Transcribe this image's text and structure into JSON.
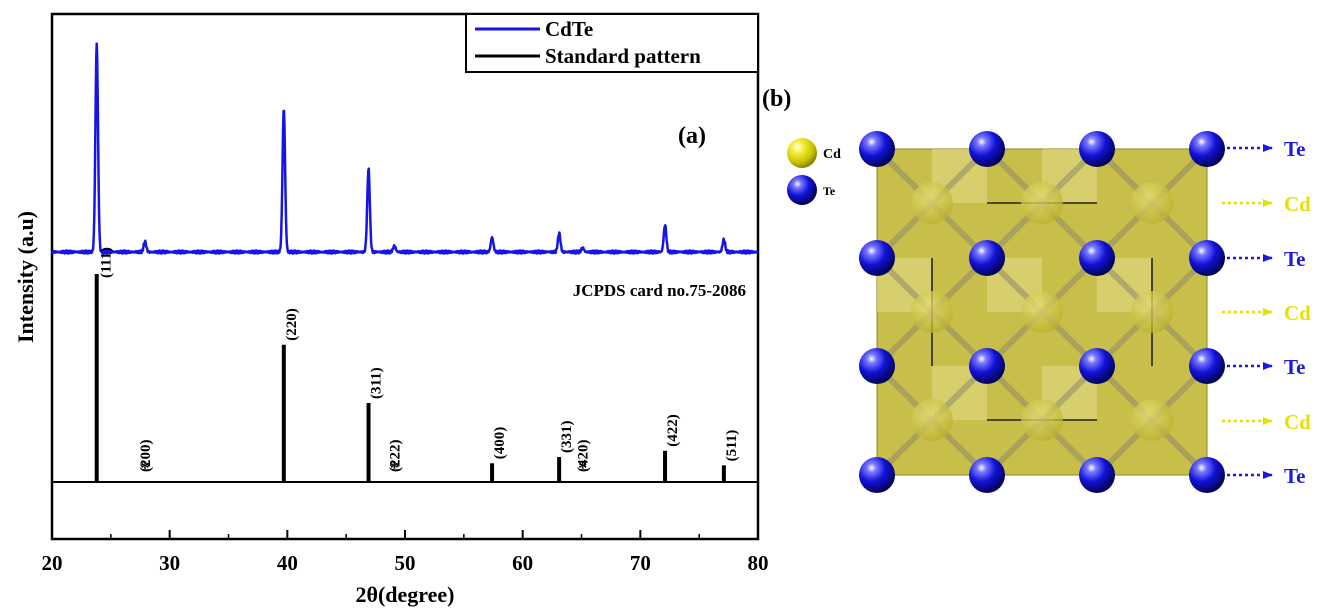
{
  "chart_data": [
    {
      "type": "line",
      "panel_label": "(a)",
      "xlabel": "2θ(degree)",
      "ylabel": "Intensity (a.u)",
      "xlim": [
        20,
        80
      ],
      "x_ticks": [
        "20",
        "30",
        "40",
        "50",
        "60",
        "70",
        "80"
      ],
      "grid": false,
      "legend_position": "top-right",
      "reference_caption": "JCPDS card no.75-2086",
      "series": [
        {
          "name": "CdTe",
          "color": "#1515e6",
          "peaks": [
            {
              "x": 23.8,
              "height": 1.0
            },
            {
              "x": 27.9,
              "height": 0.05
            },
            {
              "x": 39.7,
              "height": 0.69
            },
            {
              "x": 46.9,
              "height": 0.4
            },
            {
              "x": 49.1,
              "height": 0.03
            },
            {
              "x": 57.4,
              "height": 0.07
            },
            {
              "x": 63.1,
              "height": 0.09
            },
            {
              "x": 65.1,
              "height": 0.02
            },
            {
              "x": 72.1,
              "height": 0.13
            },
            {
              "x": 77.1,
              "height": 0.06
            }
          ]
        },
        {
          "name": "Standard pattern",
          "color": "#000000",
          "sticks": [
            {
              "x": 23.8,
              "height": 1.0,
              "label": "(111)",
              "marker": ""
            },
            {
              "x": 27.9,
              "height": 0.0,
              "label": "(200)",
              "marker": "*"
            },
            {
              "x": 39.7,
              "height": 0.66,
              "label": "(220)",
              "marker": ""
            },
            {
              "x": 46.9,
              "height": 0.38,
              "label": "(311)",
              "marker": ""
            },
            {
              "x": 49.1,
              "height": 0.0,
              "label": "(222)",
              "marker": "*"
            },
            {
              "x": 57.4,
              "height": 0.09,
              "label": "(400)",
              "marker": ""
            },
            {
              "x": 63.1,
              "height": 0.12,
              "label": "(331)",
              "marker": ""
            },
            {
              "x": 65.1,
              "height": 0.0,
              "label": "(420)",
              "marker": "*"
            },
            {
              "x": 72.1,
              "height": 0.15,
              "label": "(422)",
              "marker": ""
            },
            {
              "x": 77.1,
              "height": 0.08,
              "label": "(511)",
              "marker": ""
            }
          ]
        }
      ]
    },
    {
      "type": "diagram",
      "panel_label": "(b)",
      "legend": [
        {
          "label": "Cd",
          "color": "#e8e000"
        },
        {
          "label": "Te",
          "color": "#1010d8"
        }
      ],
      "layer_labels": [
        {
          "label": "Te",
          "color": "#1a1ae0"
        },
        {
          "label": "Cd",
          "color": "#e8e000"
        },
        {
          "label": "Te",
          "color": "#1a1ae0"
        },
        {
          "label": "Cd",
          "color": "#e8e000"
        },
        {
          "label": "Te",
          "color": "#1a1ae0"
        },
        {
          "label": "Cd",
          "color": "#e8e000"
        },
        {
          "label": "Te",
          "color": "#1a1ae0"
        }
      ]
    }
  ]
}
